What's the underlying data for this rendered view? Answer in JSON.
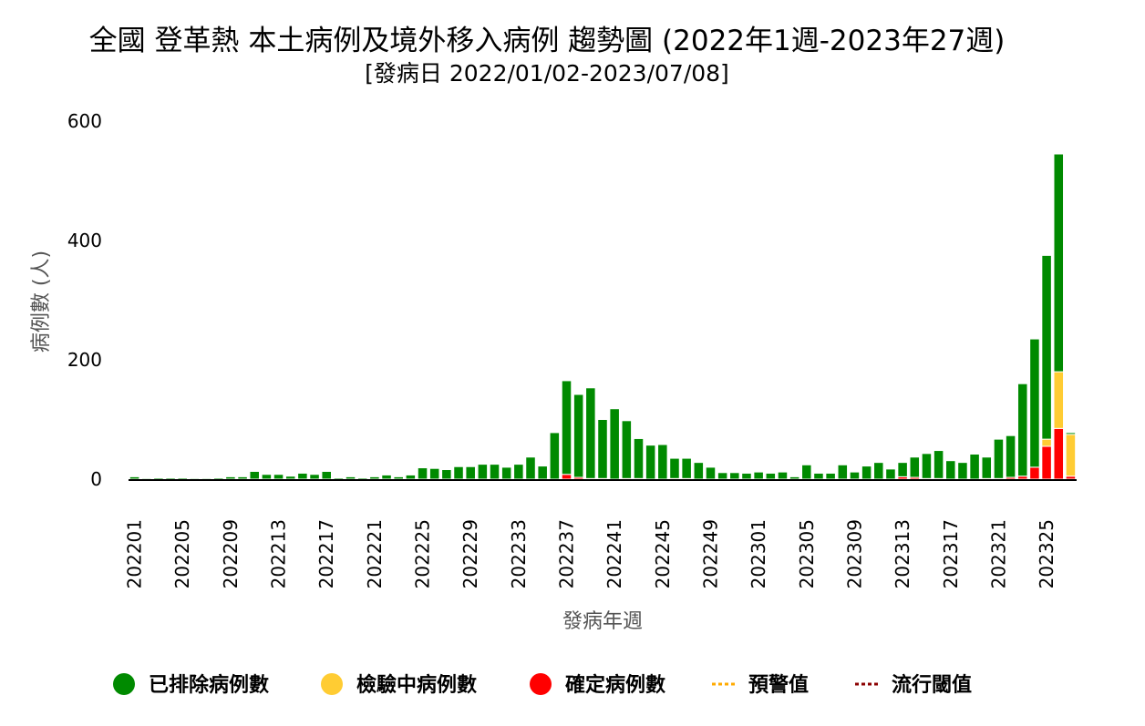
{
  "chart_data": {
    "type": "bar",
    "stacked": true,
    "title": "全國 登革熱 本土病例及境外移入病例 趨勢圖 (2022年1週-2023年27週)",
    "subtitle": "[發病日 2022/01/02-2023/07/08]",
    "xlabel": "發病年週",
    "ylabel": "病例數 (人)",
    "ylim": [
      0,
      600
    ],
    "yticks": [
      0,
      200,
      400,
      600
    ],
    "x_tick_labels": [
      "202201",
      "202205",
      "202209",
      "202213",
      "202217",
      "202221",
      "202225",
      "202229",
      "202233",
      "202237",
      "202241",
      "202245",
      "202249",
      "202301",
      "202305",
      "202309",
      "202313",
      "202317",
      "202321",
      "202325"
    ],
    "x_tick_indices": [
      0,
      4,
      8,
      12,
      16,
      20,
      24,
      28,
      32,
      36,
      40,
      44,
      48,
      52,
      56,
      60,
      64,
      68,
      72,
      76
    ],
    "colors": {
      "excluded": "#008a00",
      "pending": "#ffcc33",
      "confirmed": "#ff0000",
      "warning": "#ffaa00",
      "epidemic": "#8b0000"
    },
    "legend": [
      {
        "label": "已排除病例數",
        "type": "dot",
        "color": "#008a00"
      },
      {
        "label": "檢驗中病例數",
        "type": "dot",
        "color": "#ffcc33"
      },
      {
        "label": "確定病例數",
        "type": "dot",
        "color": "#ff0000"
      },
      {
        "label": "預警值",
        "type": "dash",
        "color": "#ffaa00"
      },
      {
        "label": "流行閾值",
        "type": "dash",
        "color": "#8b0000"
      }
    ],
    "series": [
      {
        "name": "確定病例數",
        "key": "confirmed",
        "values": [
          0,
          0,
          0,
          0,
          0,
          0,
          0,
          0,
          0,
          0,
          0,
          0,
          0,
          0,
          0,
          0,
          0,
          0,
          0,
          0,
          0,
          0,
          0,
          0,
          0,
          0,
          0,
          0,
          0,
          0,
          0,
          0,
          0,
          0,
          0,
          0,
          8,
          3,
          1,
          1,
          0,
          1,
          1,
          0,
          0,
          1,
          1,
          0,
          0,
          0,
          0,
          0,
          0,
          0,
          0,
          0,
          0,
          0,
          0,
          0,
          0,
          0,
          0,
          0,
          4,
          3,
          1,
          1,
          0,
          0,
          0,
          1,
          1,
          3,
          5,
          20,
          55,
          85,
          5
        ]
      },
      {
        "name": "檢驗中病例數",
        "key": "pending",
        "values": [
          0,
          0,
          0,
          0,
          0,
          0,
          0,
          0,
          0,
          0,
          0,
          0,
          0,
          0,
          0,
          0,
          0,
          0,
          0,
          0,
          0,
          0,
          0,
          0,
          0,
          0,
          0,
          0,
          0,
          0,
          0,
          0,
          0,
          0,
          0,
          0,
          0,
          0,
          0,
          0,
          0,
          0,
          0,
          0,
          0,
          0,
          0,
          0,
          0,
          0,
          0,
          0,
          0,
          0,
          0,
          0,
          0,
          0,
          0,
          0,
          0,
          0,
          0,
          0,
          0,
          0,
          0,
          0,
          0,
          0,
          0,
          0,
          0,
          0,
          0,
          0,
          12,
          95,
          70
        ]
      },
      {
        "name": "已排除病例數",
        "key": "excluded",
        "values": [
          4,
          1,
          2,
          2,
          2,
          1,
          1,
          2,
          4,
          4,
          13,
          8,
          8,
          5,
          10,
          8,
          13,
          2,
          4,
          2,
          4,
          7,
          4,
          7,
          19,
          18,
          16,
          21,
          21,
          25,
          25,
          20,
          25,
          37,
          22,
          78,
          157,
          139,
          152,
          99,
          118,
          97,
          67,
          57,
          58,
          34,
          34,
          28,
          20,
          11,
          11,
          10,
          12,
          10,
          12,
          4,
          24,
          10,
          10,
          24,
          12,
          22,
          28,
          17,
          24,
          34,
          42,
          47,
          31,
          28,
          42,
          36,
          66,
          70,
          155,
          215,
          308,
          365,
          3
        ]
      }
    ]
  }
}
